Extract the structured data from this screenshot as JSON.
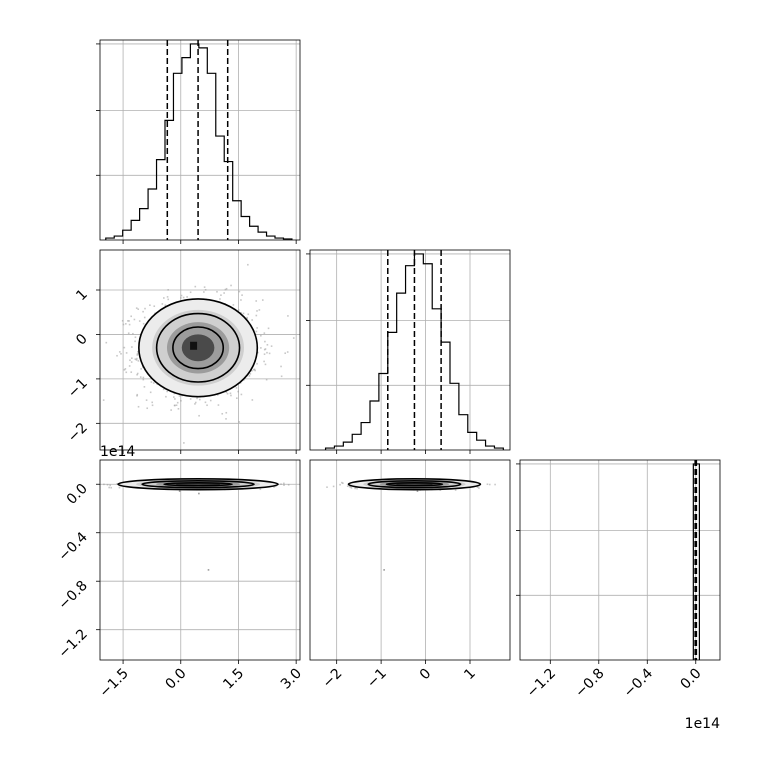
{
  "chart_data": [
    {
      "type": "histogram",
      "panel": "1d-param-1",
      "xlim": [
        -2.1,
        3.1
      ],
      "ylim": [
        0,
        1.02
      ],
      "bin_edges": [
        -1.95,
        -1.73,
        -1.51,
        -1.29,
        -1.07,
        -0.85,
        -0.63,
        -0.41,
        -0.19,
        0.03,
        0.25,
        0.47,
        0.69,
        0.91,
        1.13,
        1.35,
        1.57,
        1.79,
        2.01,
        2.23,
        2.45,
        2.67,
        2.89
      ],
      "counts": [
        0.01,
        0.02,
        0.05,
        0.1,
        0.16,
        0.26,
        0.41,
        0.61,
        0.85,
        0.93,
        1.0,
        0.98,
        0.85,
        0.53,
        0.4,
        0.2,
        0.12,
        0.07,
        0.04,
        0.02,
        0.01,
        0.005
      ],
      "quantile_lines": [
        -0.35,
        0.45,
        1.22
      ],
      "grid": true
    },
    {
      "type": "scatter_density",
      "panel": "2d-param-2-vs-param-1",
      "xlim": [
        -2.1,
        3.1
      ],
      "ylim": [
        -2.6,
        1.9
      ],
      "center": [
        0.45,
        -0.3
      ],
      "spread": [
        0.77,
        0.55
      ],
      "contour_levels": 4,
      "ytick_labels": [
        "1",
        "0",
        "−1",
        "−2"
      ],
      "yticks": [
        1,
        0,
        -1,
        -2
      ],
      "grid": true
    },
    {
      "type": "histogram",
      "panel": "1d-param-2",
      "xlim": [
        -2.6,
        1.9
      ],
      "ylim": [
        0,
        1.02
      ],
      "bin_edges": [
        -2.25,
        -2.05,
        -1.85,
        -1.65,
        -1.45,
        -1.25,
        -1.05,
        -0.85,
        -0.65,
        -0.45,
        -0.25,
        -0.05,
        0.15,
        0.35,
        0.55,
        0.75,
        0.95,
        1.15,
        1.35,
        1.55,
        1.75
      ],
      "counts": [
        0.01,
        0.02,
        0.04,
        0.08,
        0.14,
        0.25,
        0.39,
        0.6,
        0.8,
        0.94,
        1.0,
        0.95,
        0.72,
        0.55,
        0.34,
        0.18,
        0.09,
        0.05,
        0.02,
        0.01
      ],
      "quantile_lines": [
        -0.85,
        -0.25,
        0.35
      ],
      "grid": true
    },
    {
      "type": "scatter_density",
      "panel": "2d-param-3-vs-param-1",
      "xlim": [
        -2.1,
        3.1
      ],
      "ylim": [
        -1.45,
        0.2
      ],
      "exponent_label": "1e14",
      "center": [
        0.45,
        0.0
      ],
      "spread": [
        0.77,
        0.012
      ],
      "contour_levels": 4,
      "outlier_points": [
        [
          -0.05,
          -0.05
        ],
        [
          0.7,
          -0.7
        ],
        [
          0.45,
          -0.07
        ]
      ],
      "ytick_labels": [
        "0.0",
        "−0.4",
        "−0.8",
        "−1.2"
      ],
      "yticks": [
        0,
        -0.4,
        -0.8,
        -1.2
      ],
      "xtick_labels": [
        "−1.5",
        "0.0",
        "1.5",
        "3.0"
      ],
      "xticks": [
        -1.5,
        0,
        1.5,
        3.0
      ],
      "grid": true
    },
    {
      "type": "scatter_density",
      "panel": "2d-param-3-vs-param-2",
      "xlim": [
        -2.6,
        1.9
      ],
      "ylim": [
        -1.45,
        0.2
      ],
      "center": [
        -0.25,
        0.0
      ],
      "spread": [
        0.55,
        0.012
      ],
      "contour_levels": 4,
      "outlier_points": [
        [
          -0.95,
          -0.7
        ],
        [
          -0.2,
          -0.05
        ]
      ],
      "xtick_labels": [
        "−2",
        "−1",
        "0",
        "1"
      ],
      "xticks": [
        -2,
        -1,
        0,
        1
      ],
      "grid": true
    },
    {
      "type": "histogram",
      "panel": "1d-param-3",
      "xlim": [
        -1.45,
        0.2
      ],
      "ylim": [
        0,
        1.02
      ],
      "exponent_label": "1e14",
      "bin_edges": [
        -0.02,
        0.005,
        0.03
      ],
      "counts": [
        1.0,
        1.0
      ],
      "quantile_lines": [
        -0.005,
        0.0,
        0.005
      ],
      "xtick_labels": [
        "−1.2",
        "−0.8",
        "−0.4",
        "0.0"
      ],
      "xticks": [
        -1.2,
        -0.8,
        -0.4,
        0.0
      ],
      "grid": true
    }
  ]
}
